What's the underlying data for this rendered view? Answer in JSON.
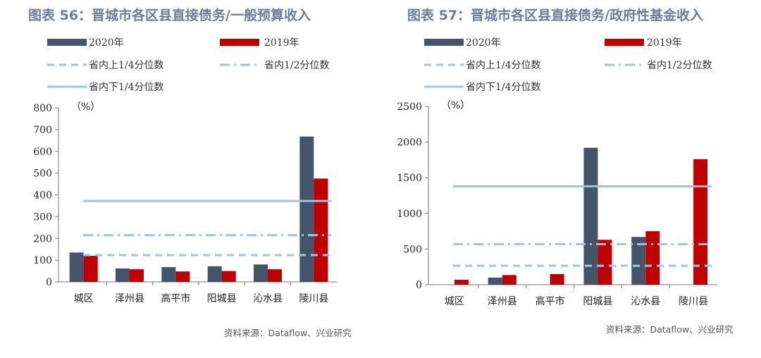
{
  "colors": {
    "title": "#6a7d9f",
    "series_2020": "#44546a",
    "series_2019": "#c00000",
    "ref_line": "#9dc3e6"
  },
  "chart_data": [
    {
      "type": "bar",
      "title": "图表 56：晋城市各区县直接债务/一般预算收入",
      "unit": "（%）",
      "source": "资料来源：Dataflow、兴业研究",
      "categories": [
        "城区",
        "泽州县",
        "高平市",
        "阳城县",
        "沁水县",
        "陵川县"
      ],
      "ylim": [
        0,
        800
      ],
      "yticks": [
        0,
        100,
        200,
        300,
        400,
        500,
        600,
        700,
        800
      ],
      "series": [
        {
          "name": "2020年",
          "values": [
            135,
            62,
            68,
            72,
            80,
            668
          ]
        },
        {
          "name": "2019年",
          "values": [
            120,
            58,
            48,
            50,
            58,
            475
          ]
        }
      ],
      "reference_lines": [
        {
          "name": "省内上1/4分位数",
          "value": 123,
          "style": "dashed"
        },
        {
          "name": "省内1/2分位数",
          "value": 215,
          "style": "dashdot"
        },
        {
          "name": "省内下1/4分位数",
          "value": 372,
          "style": "solid"
        }
      ]
    },
    {
      "type": "bar",
      "title": "图表 57：晋城市各区县直接债务/政府性基金收入",
      "unit": "（%）",
      "source": "资料来源：Dataflow、兴业研究",
      "categories": [
        "城区",
        "泽州县",
        "高平市",
        "阳城县",
        "沁水县",
        "陵川县"
      ],
      "ylim": [
        0,
        2500
      ],
      "yticks": [
        0,
        500,
        1000,
        1500,
        2000,
        2500
      ],
      "series": [
        {
          "name": "2020年",
          "values": [
            0,
            100,
            0,
            1920,
            670,
            0
          ]
        },
        {
          "name": "2019年",
          "values": [
            70,
            135,
            150,
            630,
            750,
            1760
          ]
        }
      ],
      "reference_lines": [
        {
          "name": "省内上1/4分位数",
          "value": 265,
          "style": "dashed"
        },
        {
          "name": "省内1/2分位数",
          "value": 570,
          "style": "dashdot"
        },
        {
          "name": "省内下1/4分位数",
          "value": 1380,
          "style": "solid"
        }
      ]
    }
  ]
}
